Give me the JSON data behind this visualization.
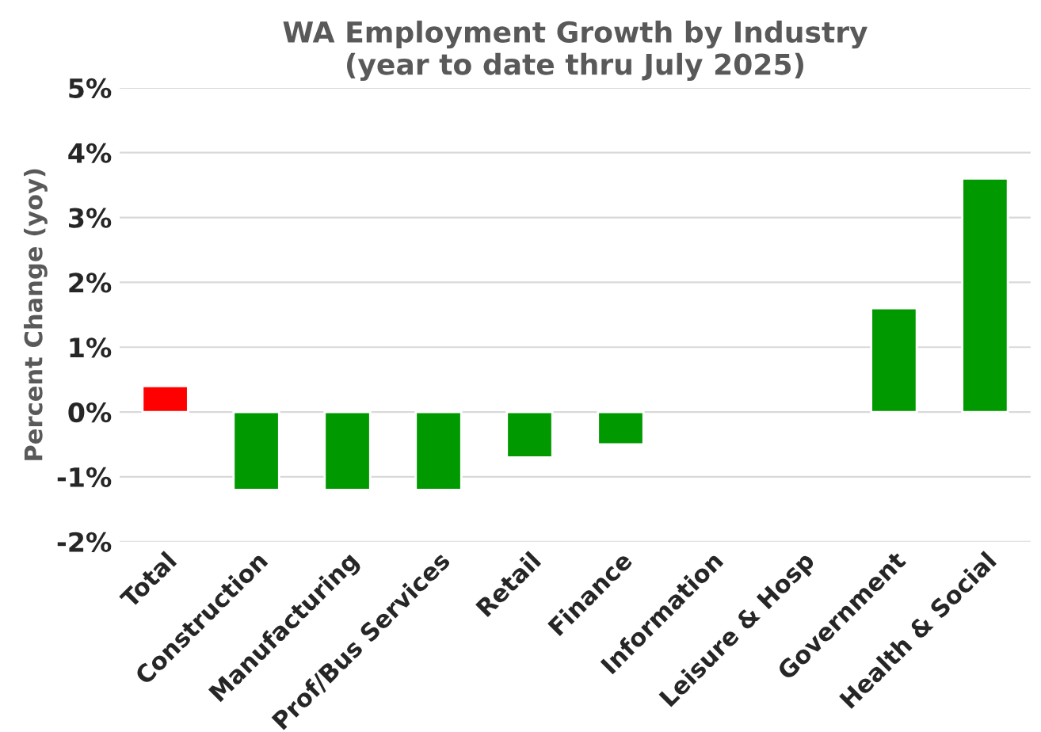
{
  "chart_data": {
    "type": "bar",
    "title": "WA Employment Growth by Industry\n(year to date thru July 2025)",
    "ylabel": "Percent Change (yoy)",
    "categories": [
      "Total",
      "Construction",
      "Manufacturing",
      "Prof/Bus Services",
      "Retail",
      "Finance",
      "Information",
      "Leisure & Hosp",
      "Government",
      "Health & Social"
    ],
    "values": [
      0.4,
      -1.2,
      -1.2,
      -1.2,
      -0.7,
      -0.5,
      null,
      null,
      1.6,
      3.6
    ],
    "colors": [
      "#ff0000",
      "#009900",
      "#009900",
      "#009900",
      "#009900",
      "#009900",
      "#009900",
      "#009900",
      "#009900",
      "#009900"
    ],
    "ylim": [
      -2,
      5
    ],
    "yticks": [
      {
        "value": -2,
        "label": "-2%"
      },
      {
        "value": -1,
        "label": "-1%"
      },
      {
        "value": 0,
        "label": "0%"
      },
      {
        "value": 1,
        "label": "1%"
      },
      {
        "value": 2,
        "label": "2%"
      },
      {
        "value": 3,
        "label": "3%"
      },
      {
        "value": 4,
        "label": "4%"
      },
      {
        "value": 5,
        "label": "5%"
      }
    ],
    "grid": "y",
    "legend": false
  }
}
